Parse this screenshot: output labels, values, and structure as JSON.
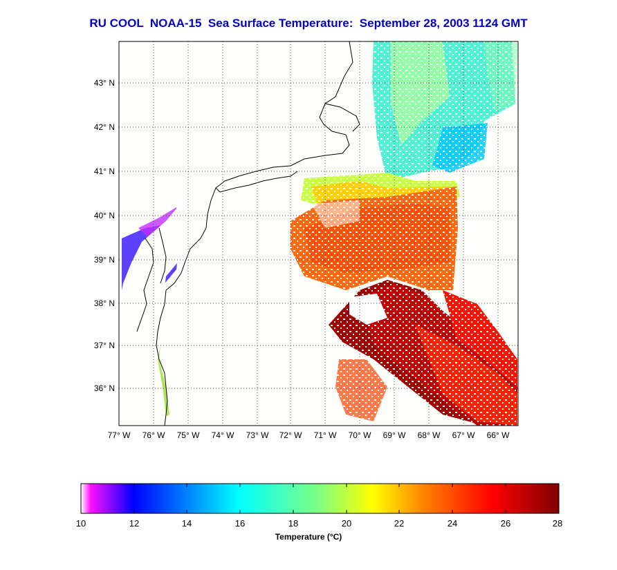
{
  "title": "RU COOL  NOAA-15  Sea Surface Temperature:  September 28, 2003 1124 GMT",
  "map": {
    "lon_labels": [
      "77° W",
      "76° W",
      "75° W",
      "74° W",
      "73° W",
      "72° W",
      "71° W",
      "70° W",
      "69° W",
      "68° W",
      "67° W",
      "66° W"
    ],
    "lat_labels": [
      "43° N",
      "42° N",
      "41° N",
      "40° N",
      "39° N",
      "38° N",
      "37° N",
      "36° N"
    ],
    "lon_range": [
      -77,
      -65.8
    ],
    "lat_range": [
      35.2,
      43.8
    ],
    "grid": "dotted"
  },
  "colorbar": {
    "ticks": [
      "10",
      "12",
      "14",
      "16",
      "18",
      "20",
      "22",
      "24",
      "26",
      "28"
    ],
    "range": [
      10,
      28
    ],
    "label": "Temperature (°C)",
    "colors": [
      "#ff10ff",
      "#0000ff",
      "#0080ff",
      "#00ffff",
      "#80ff80",
      "#ffff00",
      "#ff8000",
      "#ff0000",
      "#800000"
    ]
  }
}
